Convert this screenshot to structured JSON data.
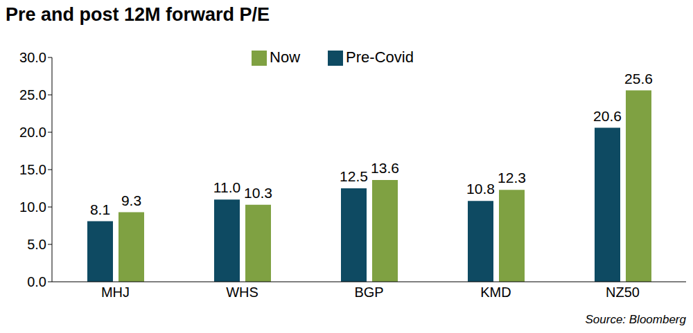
{
  "chart_data": {
    "type": "bar",
    "title": "Pre and post 12M forward P/E",
    "annotations": [
      "Source: Bloomberg"
    ],
    "categories": [
      "MHJ",
      "WHS",
      "BGP",
      "KMD",
      "NZ50"
    ],
    "series": [
      {
        "name": "Pre-Covid",
        "color": "#0e4a62",
        "values": [
          8.1,
          11.0,
          12.5,
          10.8,
          20.6
        ],
        "value_labels": [
          "8.1",
          "11.0",
          "12.5",
          "10.8",
          "20.6"
        ]
      },
      {
        "name": "Now",
        "color": "#7fa142",
        "values": [
          9.3,
          10.3,
          13.6,
          12.3,
          25.6
        ],
        "value_labels": [
          "9.3",
          "10.3",
          "13.6",
          "12.3",
          "25.6"
        ]
      }
    ],
    "ylim": [
      0,
      30
    ],
    "yticks": [
      {
        "value": 0,
        "label": "0.0"
      },
      {
        "value": 5,
        "label": "5.0"
      },
      {
        "value": 10,
        "label": "10.0"
      },
      {
        "value": 15,
        "label": "15.0"
      },
      {
        "value": 20,
        "label": "20.0"
      },
      {
        "value": 25,
        "label": "25.0"
      },
      {
        "value": 30,
        "label": "30.0"
      }
    ],
    "grid": false,
    "legend": "top",
    "data_labels": true
  }
}
